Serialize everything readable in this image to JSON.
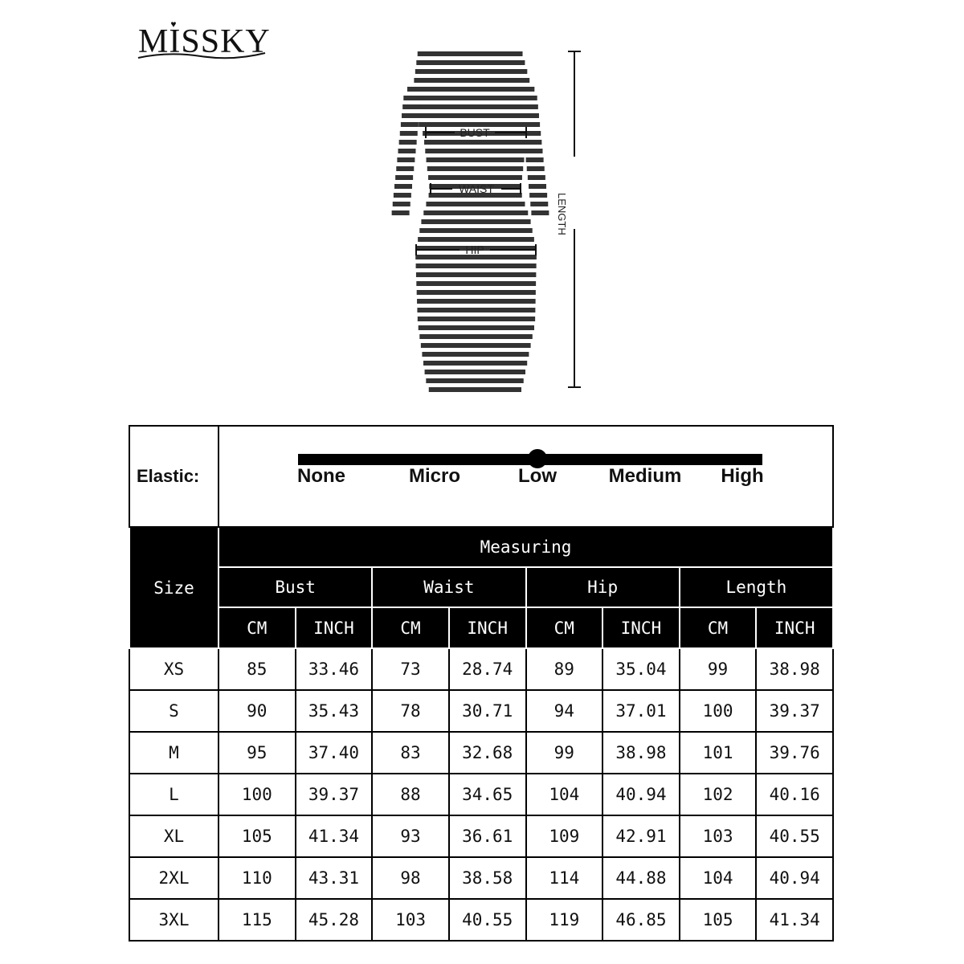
{
  "brand": {
    "logo_text": "MISSKY"
  },
  "diagram": {
    "labels": {
      "bust": "BUST",
      "waist": "WAIST",
      "hip": "HIP",
      "length": "LENGTH"
    },
    "stripe_color": "#333333"
  },
  "elastic": {
    "label": "Elastic:",
    "levels": [
      "None",
      "Micro",
      "Low",
      "Medium",
      "High"
    ],
    "selected": "Low",
    "selected_index": 2
  },
  "table": {
    "size_header": "Size",
    "measuring_header": "Measuring",
    "groups": [
      "Bust",
      "Waist",
      "Hip",
      "Length"
    ],
    "units": [
      "CM",
      "INCH",
      "CM",
      "INCH",
      "CM",
      "INCH",
      "CM",
      "INCH"
    ],
    "rows": [
      {
        "size": "XS",
        "values": [
          "85",
          "33.46",
          "73",
          "28.74",
          "89",
          "35.04",
          "99",
          "38.98"
        ]
      },
      {
        "size": "S",
        "values": [
          "90",
          "35.43",
          "78",
          "30.71",
          "94",
          "37.01",
          "100",
          "39.37"
        ]
      },
      {
        "size": "M",
        "values": [
          "95",
          "37.40",
          "83",
          "32.68",
          "99",
          "38.98",
          "101",
          "39.76"
        ]
      },
      {
        "size": "L",
        "values": [
          "100",
          "39.37",
          "88",
          "34.65",
          "104",
          "40.94",
          "102",
          "40.16"
        ]
      },
      {
        "size": "XL",
        "values": [
          "105",
          "41.34",
          "93",
          "36.61",
          "109",
          "42.91",
          "103",
          "40.55"
        ]
      },
      {
        "size": "2XL",
        "values": [
          "110",
          "43.31",
          "98",
          "38.58",
          "114",
          "44.88",
          "104",
          "40.94"
        ]
      },
      {
        "size": "3XL",
        "values": [
          "115",
          "45.28",
          "103",
          "40.55",
          "119",
          "46.85",
          "105",
          "41.34"
        ]
      }
    ]
  }
}
